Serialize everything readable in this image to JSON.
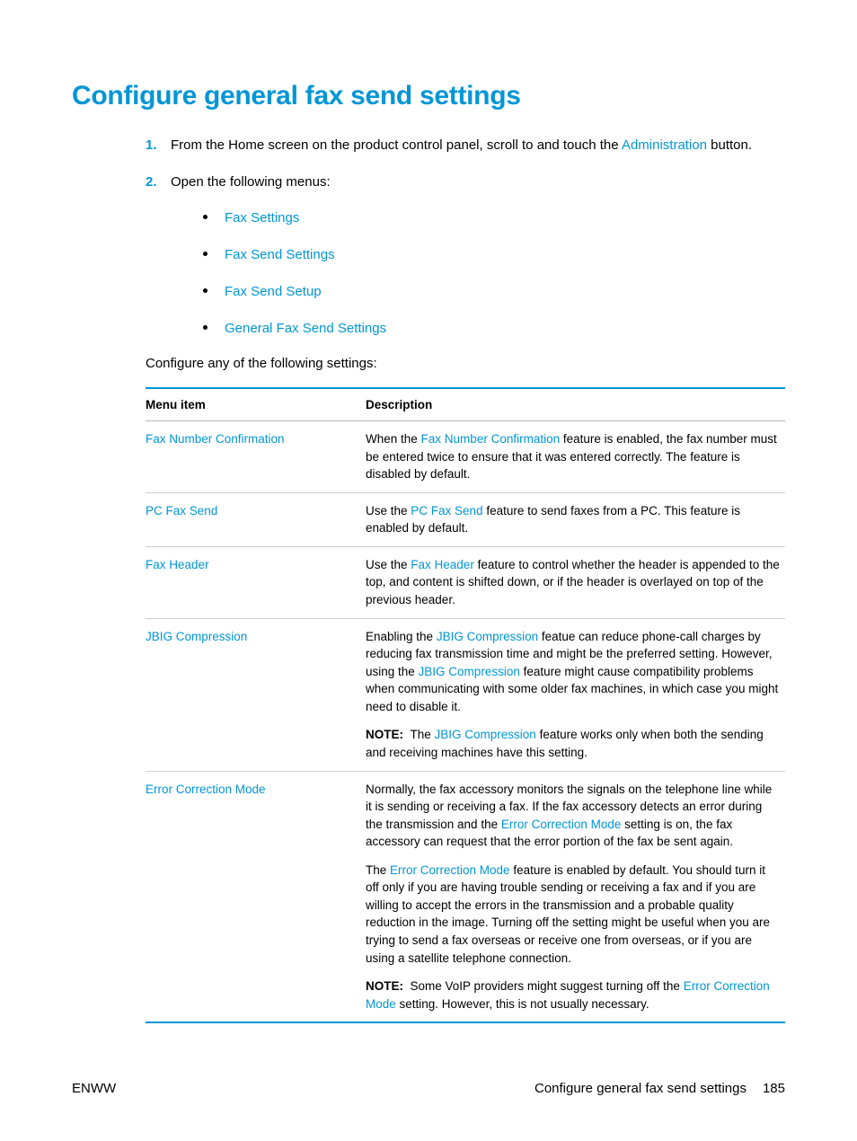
{
  "colors": {
    "accent": "#0096d6",
    "table_border_strong": "#0096d6",
    "step_marker": "#0096d6"
  },
  "title": "Configure general fax send settings",
  "steps": {
    "s1_pre": "From the Home screen on the product control panel, scroll to and touch the ",
    "s1_link": "Administration",
    "s1_post": " button.",
    "s2": "Open the following menus:",
    "bullets": [
      "Fax Settings",
      "Fax Send Settings",
      "Fax Send Setup",
      "General Fax Send Settings"
    ]
  },
  "intro": "Configure any of the following settings:",
  "table": {
    "headers": [
      "Menu item",
      "Description"
    ],
    "rows": [
      {
        "item": "Fax Number Confirmation",
        "desc_pre": "When the ",
        "desc_link": "Fax Number Confirmation",
        "desc_post": " feature is enabled, the fax number must be entered twice to ensure that it was entered correctly. The feature is disabled by default."
      },
      {
        "item": "PC Fax Send",
        "desc_pre": "Use the ",
        "desc_link": "PC Fax Send",
        "desc_post": " feature to send faxes from a PC. This feature is enabled by default."
      },
      {
        "item": "Fax Header",
        "desc_pre": "Use the ",
        "desc_link": "Fax Header",
        "desc_post": " feature to control whether the header is appended to the top, and content is shifted down, or if the header is overlayed on top of the previous header."
      },
      {
        "item": "JBIG Compression",
        "p1_pre": "Enabling the ",
        "p1_link1": "JBIG Compression",
        "p1_mid": " featue can reduce phone-call charges by reducing fax transmission time and might be the preferred setting. However, using the ",
        "p1_link2": "JBIG Compression",
        "p1_post": " feature might cause compatibility problems when communicating with some older fax machines, in which case you might need to disable it.",
        "note_label": "NOTE:",
        "note_pre": "The ",
        "note_link": "JBIG Compression",
        "note_post": " feature works only when both the sending and receiving machines have this setting."
      },
      {
        "item": "Error Correction Mode",
        "p1_pre": "Normally, the fax accessory monitors the signals on the telephone line while it is sending or receiving a fax. If the fax accessory detects an error during the transmission and the ",
        "p1_link": "Error Correction Mode",
        "p1_post": " setting is on, the fax accessory can request that the error portion of the fax be sent again.",
        "p2_pre": "The ",
        "p2_link": "Error Correction Mode",
        "p2_post": " feature is enabled by default. You should turn it off only if you are having trouble sending or receiving a fax and if you are willing to accept the errors in the transmission and a probable quality reduction in the image. Turning off the setting might be useful when you are trying to send a fax overseas or receive one from overseas, or if you are using a satellite telephone connection.",
        "note_label": "NOTE:",
        "note_pre": "Some VoIP providers might suggest turning off the ",
        "note_link": "Error Correction Mode",
        "note_post": " setting. However, this is not usually necessary."
      }
    ]
  },
  "footer": {
    "left": "ENWW",
    "right_text": "Configure general fax send settings",
    "page": "185"
  }
}
